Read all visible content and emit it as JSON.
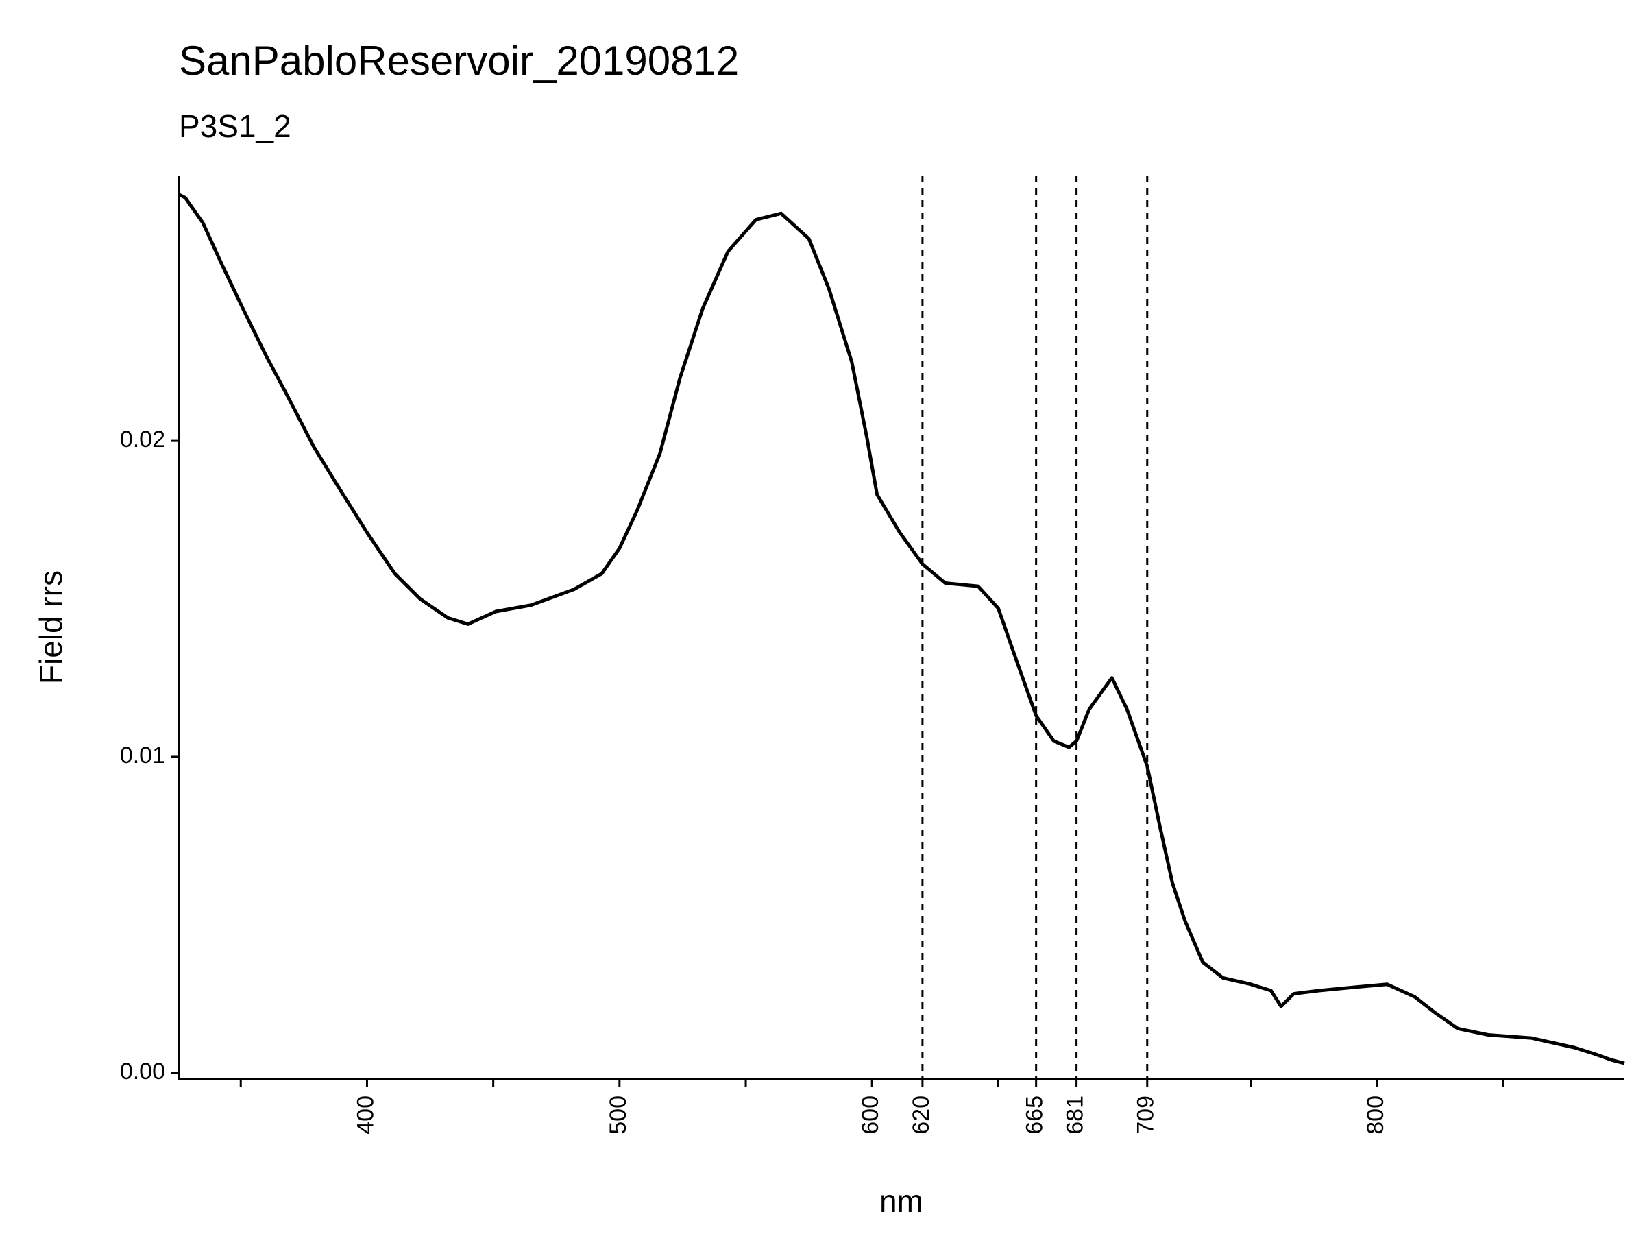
{
  "chart_data": {
    "type": "line",
    "title": "SanPabloReservoir_20190812",
    "subtitle": "P3S1_2",
    "x_label": "nm",
    "y_label": "Field rrs",
    "xlim": [
      325.5,
      898
    ],
    "ylim": [
      -0.0002,
      0.0284
    ],
    "xticks": [
      400,
      500,
      600,
      620,
      665,
      681,
      709,
      800
    ],
    "xminorticks": [
      350,
      450,
      550,
      650,
      750,
      850
    ],
    "yticks": [
      {
        "value": 0,
        "label": "0.00"
      },
      {
        "value": 0.01,
        "label": "0.01"
      },
      {
        "value": 0.02,
        "label": "0.02"
      }
    ],
    "vlines": [
      620,
      665,
      681,
      709
    ],
    "grid": false,
    "series": [
      {
        "color": "#000000",
        "x": [
          325.5,
          328,
          335,
          343,
          352,
          360,
          368,
          379,
          389,
          400,
          411,
          421,
          432,
          440,
          451,
          465,
          482,
          493,
          500,
          507,
          516,
          524,
          533,
          543,
          554,
          564,
          575,
          583,
          592,
          598,
          602,
          611,
          620,
          629,
          642,
          650,
          657,
          665,
          672,
          678,
          681,
          686,
          695,
          701,
          709,
          714,
          719,
          724,
          731,
          739,
          750,
          758,
          762,
          767,
          777,
          790,
          804,
          815,
          823,
          832,
          844,
          861,
          878,
          886,
          893,
          898
        ],
        "values": [
          0.0278,
          0.0277,
          0.0269,
          0.0255,
          0.024,
          0.0227,
          0.0215,
          0.0198,
          0.0185,
          0.0171,
          0.0158,
          0.015,
          0.0144,
          0.0142,
          0.0146,
          0.0148,
          0.0153,
          0.0158,
          0.0166,
          0.0178,
          0.0196,
          0.022,
          0.0242,
          0.026,
          0.027,
          0.0272,
          0.0264,
          0.0248,
          0.0225,
          0.0201,
          0.0183,
          0.0171,
          0.0161,
          0.0155,
          0.0154,
          0.0147,
          0.0131,
          0.0113,
          0.0105,
          0.0103,
          0.0105,
          0.0115,
          0.0125,
          0.0115,
          0.0097,
          0.0078,
          0.006,
          0.0048,
          0.0035,
          0.003,
          0.0028,
          0.0026,
          0.0021,
          0.0025,
          0.0026,
          0.0027,
          0.0028,
          0.0024,
          0.0019,
          0.0014,
          0.0012,
          0.0011,
          0.0008,
          0.0006,
          0.0004,
          0.0003
        ]
      }
    ]
  }
}
